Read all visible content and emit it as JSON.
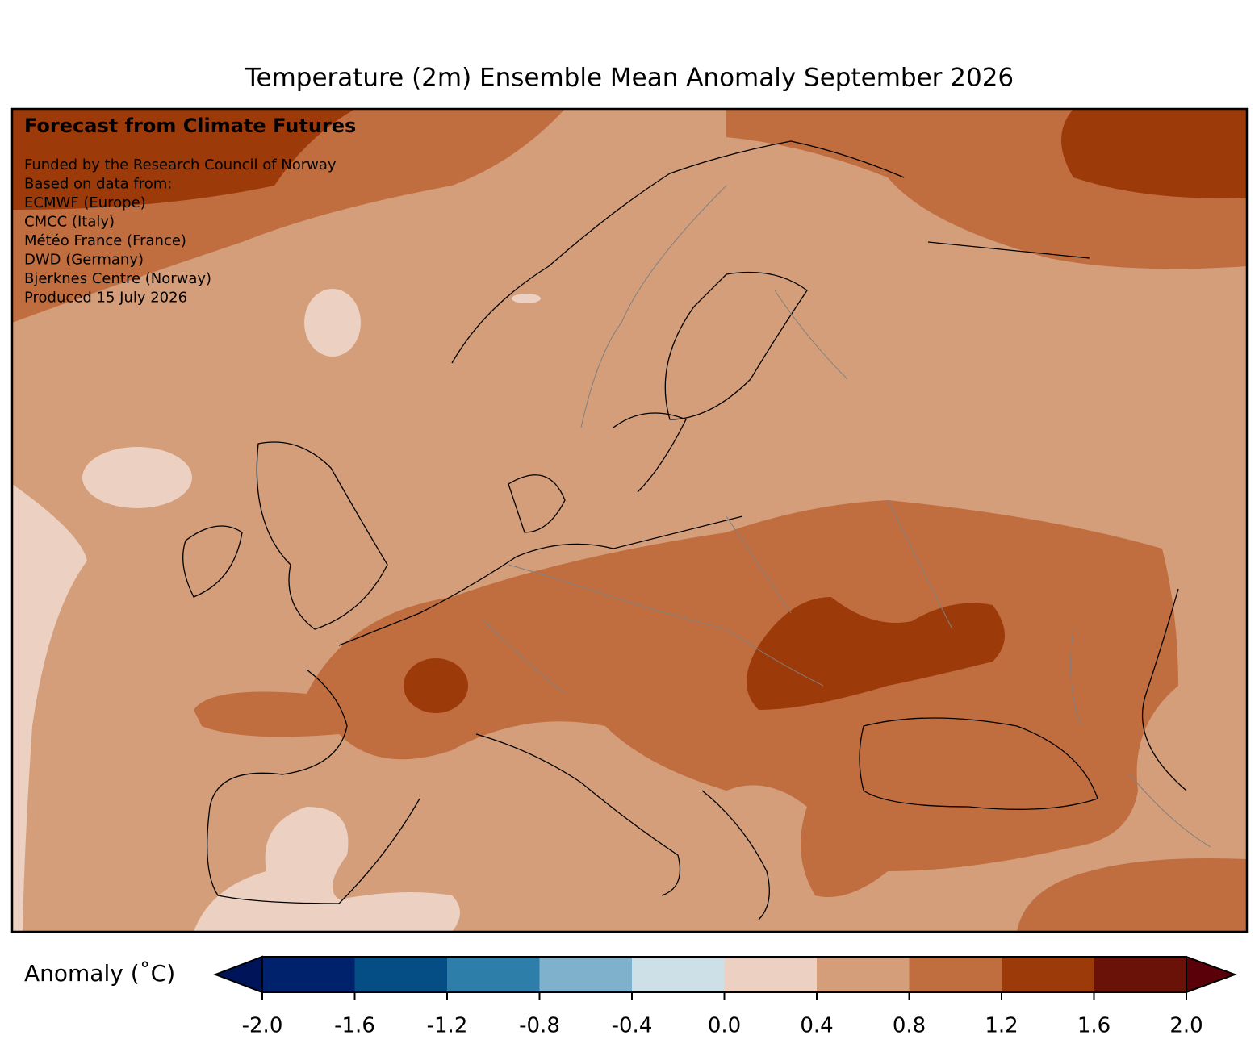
{
  "title": "Temperature (2m) Ensemble Mean Anomaly September 2026",
  "annotation": {
    "heading": "Forecast from Climate Futures",
    "lines": [
      "Funded by the Research Council of Norway",
      "Based on data from:",
      "ECMWF (Europe)",
      "CMCC (Italy)",
      "Météo France (France)",
      "DWD (Germany)",
      "Bjerknes Centre (Norway)",
      "Produced 15 July 2026"
    ]
  },
  "colorbar": {
    "label": "Anomaly (˚C)",
    "ticks": [
      {
        "value": -2.0,
        "label": "-2.0"
      },
      {
        "value": -1.6,
        "label": "-1.6"
      },
      {
        "value": -1.2,
        "label": "-1.2"
      },
      {
        "value": -0.8,
        "label": "-0.8"
      },
      {
        "value": -0.4,
        "label": "-0.4"
      },
      {
        "value": 0,
        "label": "0.0"
      },
      {
        "value": 0.4,
        "label": "0.4"
      },
      {
        "value": 0.8,
        "label": "0.8"
      },
      {
        "value": 1.2,
        "label": "1.2"
      },
      {
        "value": 1.6,
        "label": "1.6"
      },
      {
        "value": 2.0,
        "label": "2.0"
      }
    ],
    "colors": [
      "#00216b",
      "#054d85",
      "#2d7ea8",
      "#7fb0cc",
      "#cde0e8",
      "#ecd0c2",
      "#d49e7b",
      "#c06d3f",
      "#9c3a0a",
      "#6b1208"
    ],
    "under_color": "#00145a",
    "over_color": "#5a0008"
  }
}
